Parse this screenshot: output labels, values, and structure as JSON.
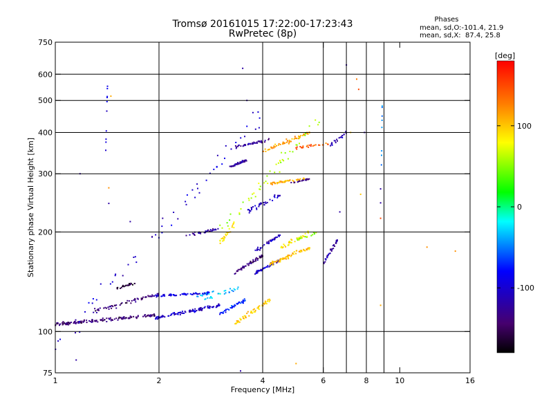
{
  "chart_data": {
    "type": "scatter",
    "title": "Tromsø 20161015 17:22:00-17:23:43",
    "subtitle": "RwPretec (8p)",
    "stats": {
      "heading": "Phases",
      "line_o": "mean, sd,O:-101.4, 21.9",
      "line_x": "mean, sd,X:  87.4, 25.8"
    },
    "xlabel": "Frequency [MHz]",
    "ylabel": "Stationary phase Virtual Height [km]",
    "x_scale": "log",
    "y_scale": "log",
    "xlim": [
      1,
      16
    ],
    "ylim": [
      75,
      750
    ],
    "xticks": [
      1,
      2,
      4,
      6,
      8,
      10,
      16
    ],
    "xtick_labels": [
      "1",
      "2",
      "4",
      "6",
      "8",
      "10",
      "16"
    ],
    "xgrid": [
      2,
      4,
      6,
      7,
      8,
      9
    ],
    "yticks": [
      75,
      100,
      200,
      300,
      400,
      500,
      600,
      750
    ],
    "ytick_labels": [
      "75",
      "100",
      "200",
      "300",
      "400",
      "500",
      "600",
      "750"
    ],
    "ygrid": [
      100,
      200,
      300,
      400,
      500,
      600
    ],
    "grid": true,
    "colorbar": {
      "label": "[deg]",
      "range": [
        -180,
        180
      ],
      "ticks": [
        100,
        0,
        -100
      ],
      "tick_labels": [
        "100",
        "0",
        "-100"
      ]
    },
    "clusters": [
      {
        "x": [
          1.0,
          1.95
        ],
        "y": [
          105,
          112
        ],
        "phase": -140,
        "n": 150,
        "spread": 0.012
      },
      {
        "x": [
          1.95,
          3.0
        ],
        "y": [
          110,
          120
        ],
        "phase": -105,
        "n": 110,
        "spread": 0.012
      },
      {
        "x": [
          3.0,
          3.6
        ],
        "y": [
          113,
          125
        ],
        "phase": -70,
        "n": 40,
        "spread": 0.015
      },
      {
        "x": [
          3.3,
          4.2
        ],
        "y": [
          105,
          125
        ],
        "phase": 100,
        "n": 60,
        "spread": 0.02
      },
      {
        "x": [
          1.3,
          2.0
        ],
        "y": [
          115,
          130
        ],
        "phase": -140,
        "n": 60,
        "spread": 0.02
      },
      {
        "x": [
          1.5,
          1.7
        ],
        "y": [
          135,
          140
        ],
        "phase": -160,
        "n": 25,
        "spread": 0.008
      },
      {
        "x": [
          1.95,
          2.8
        ],
        "y": [
          128,
          131
        ],
        "phase": -95,
        "n": 70,
        "spread": 0.005
      },
      {
        "x": [
          2.55,
          2.9
        ],
        "y": [
          127,
          132
        ],
        "phase": -40,
        "n": 15,
        "spread": 0.006
      },
      {
        "x": [
          2.7,
          3.4
        ],
        "y": [
          125,
          135
        ],
        "phase": -30,
        "n": 25,
        "spread": 0.02
      },
      {
        "x": [
          2.4,
          3.0
        ],
        "y": [
          195,
          205
        ],
        "phase": -120,
        "n": 30,
        "spread": 0.012
      },
      {
        "x": [
          3.0,
          3.3
        ],
        "y": [
          185,
          210
        ],
        "phase": 90,
        "n": 25,
        "spread": 0.02
      },
      {
        "x": [
          3.2,
          3.6
        ],
        "y": [
          315,
          330
        ],
        "phase": -120,
        "n": 45,
        "spread": 0.008
      },
      {
        "x": [
          3.6,
          4.5
        ],
        "y": [
          230,
          260
        ],
        "phase": -110,
        "n": 40,
        "spread": 0.03
      },
      {
        "x": [
          3.3,
          4.0
        ],
        "y": [
          150,
          170
        ],
        "phase": -140,
        "n": 60,
        "spread": 0.015
      },
      {
        "x": [
          3.8,
          4.5
        ],
        "y": [
          150,
          165
        ],
        "phase": -105,
        "n": 45,
        "spread": 0.012
      },
      {
        "x": [
          3.8,
          4.5
        ],
        "y": [
          175,
          195
        ],
        "phase": -110,
        "n": 40,
        "spread": 0.02
      },
      {
        "x": [
          4.2,
          5.5
        ],
        "y": [
          160,
          180
        ],
        "phase": 100,
        "n": 70,
        "spread": 0.02
      },
      {
        "x": [
          4.5,
          5.5
        ],
        "y": [
          180,
          200
        ],
        "phase": 90,
        "n": 35,
        "spread": 0.02
      },
      {
        "x": [
          5.0,
          5.8
        ],
        "y": [
          190,
          200
        ],
        "phase": 55,
        "n": 15,
        "spread": 0.015
      },
      {
        "x": [
          4.2,
          5.3
        ],
        "y": [
          280,
          290
        ],
        "phase": 110,
        "n": 50,
        "spread": 0.008
      },
      {
        "x": [
          4.8,
          5.5
        ],
        "y": [
          280,
          290
        ],
        "phase": -140,
        "n": 20,
        "spread": 0.008
      },
      {
        "x": [
          3.3,
          4.2
        ],
        "y": [
          360,
          380
        ],
        "phase": -130,
        "n": 40,
        "spread": 0.01
      },
      {
        "x": [
          4.0,
          5.5
        ],
        "y": [
          350,
          400
        ],
        "phase": 115,
        "n": 60,
        "spread": 0.02
      },
      {
        "x": [
          5.0,
          6.2
        ],
        "y": [
          360,
          370
        ],
        "phase": 140,
        "n": 25,
        "spread": 0.01
      },
      {
        "x": [
          6.0,
          6.6
        ],
        "y": [
          160,
          190
        ],
        "phase": -115,
        "n": 35,
        "spread": 0.02
      },
      {
        "x": [
          6.2,
          7.0
        ],
        "y": [
          360,
          400
        ],
        "phase": -110,
        "n": 20,
        "spread": 0.02
      },
      {
        "x": [
          1.0,
          4.0
        ],
        "y": [
          90,
          450
        ],
        "phase": -100,
        "n": 60,
        "spread": 0.12
      },
      {
        "x": [
          3.0,
          6.0
        ],
        "y": [
          200,
          450
        ],
        "phase": 60,
        "n": 50,
        "spread": 0.08
      },
      {
        "x": [
          1.4,
          1.42
        ],
        "y": [
          340,
          600
        ],
        "phase": -100,
        "n": 10,
        "spread": 0.02
      },
      {
        "x": [
          8.8,
          8.9
        ],
        "y": [
          200,
          510
        ],
        "phase": -50,
        "n": 8,
        "spread": 0.04
      }
    ],
    "isolated": [
      {
        "x": 1.18,
        "y": 300,
        "phase": -120
      },
      {
        "x": 1.45,
        "y": 515,
        "phase": 110
      },
      {
        "x": 1.43,
        "y": 244,
        "phase": -120
      },
      {
        "x": 1.43,
        "y": 272,
        "phase": 120
      },
      {
        "x": 1.65,
        "y": 215,
        "phase": -120
      },
      {
        "x": 2.05,
        "y": 220,
        "phase": -120
      },
      {
        "x": 3.5,
        "y": 625,
        "phase": -120
      },
      {
        "x": 3.6,
        "y": 500,
        "phase": -120
      },
      {
        "x": 7.0,
        "y": 640,
        "phase": -120
      },
      {
        "x": 7.5,
        "y": 580,
        "phase": 130
      },
      {
        "x": 7.6,
        "y": 540,
        "phase": 150
      },
      {
        "x": 7.9,
        "y": 400,
        "phase": -120
      },
      {
        "x": 1.15,
        "y": 82,
        "phase": -120
      },
      {
        "x": 3.45,
        "y": 76,
        "phase": -120
      },
      {
        "x": 5.0,
        "y": 80,
        "phase": 110
      },
      {
        "x": 12.0,
        "y": 180,
        "phase": 120
      },
      {
        "x": 14.5,
        "y": 175,
        "phase": 120
      },
      {
        "x": 8.8,
        "y": 270,
        "phase": -120
      },
      {
        "x": 8.8,
        "y": 245,
        "phase": -120
      },
      {
        "x": 8.8,
        "y": 220,
        "phase": 150
      },
      {
        "x": 7.7,
        "y": 260,
        "phase": 100
      },
      {
        "x": 8.8,
        "y": 120,
        "phase": 110
      },
      {
        "x": 7.2,
        "y": 400,
        "phase": 100
      },
      {
        "x": 6.7,
        "y": 230,
        "phase": -120
      }
    ]
  }
}
